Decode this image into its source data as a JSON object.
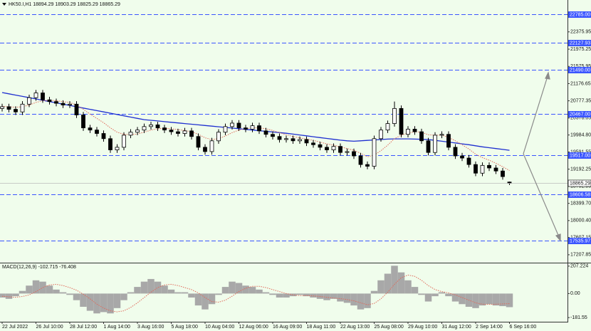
{
  "chart_data": [
    {
      "type": "candlestick",
      "title": "HK50.I,H1  18894.29 18903.29 18825.29 18865.29",
      "categories": [
        "22 Jul 2022",
        null,
        null,
        null,
        null,
        "26 Jul 10:00",
        null,
        null,
        null,
        null,
        "28 Jul 12:00",
        null,
        null,
        null,
        null,
        "1 Aug 14:00",
        null,
        null,
        null,
        null,
        "3 Aug 16:00",
        null,
        null,
        null,
        null,
        "5 Aug 18:00",
        null,
        null,
        null,
        null,
        "10 Aug 04:00",
        null,
        null,
        null,
        null,
        "12 Aug 06:00",
        null,
        null,
        null,
        null,
        "16 Aug 09:00",
        null,
        null,
        null,
        null,
        "18 Aug 11:00",
        null,
        null,
        null,
        null,
        "22 Aug 13:00",
        null,
        null,
        null,
        null,
        "25 Aug 08:00",
        null,
        null,
        null,
        null,
        "29 Aug 10:00",
        null,
        null,
        null,
        null,
        "31 Aug 12:00",
        null,
        null,
        null,
        null,
        "2 Sep 14:00",
        null,
        null,
        null,
        null,
        "6 Sep 16:00"
      ],
      "open": [
        20600,
        20640,
        20580,
        20520,
        20700,
        20850,
        20960,
        20800,
        20760,
        20720,
        20680,
        20700,
        20450,
        20150,
        20100,
        20020,
        19900,
        19640,
        19700,
        19980,
        20050,
        20100,
        20180,
        20220,
        20150,
        20100,
        20060,
        20020,
        20080,
        19950,
        19700,
        19600,
        19850,
        20050,
        20180,
        20260,
        20150,
        20120,
        20200,
        20080,
        20000,
        19950,
        19880,
        19900,
        19850,
        19880,
        19800,
        19760,
        19700,
        19640,
        19720,
        19580,
        19600,
        19500,
        19300,
        19260,
        19900,
        20100,
        20250,
        20600,
        20000,
        20120,
        20060,
        19850,
        19580,
        19980,
        20000,
        19700,
        19500,
        19450,
        19300,
        19100,
        19280,
        19220,
        19150,
        18894.29
      ],
      "high": [
        20710,
        20710,
        20650,
        20770,
        20920,
        21030,
        21030,
        20870,
        20830,
        20790,
        20770,
        20770,
        20520,
        20220,
        20170,
        20090,
        19970,
        19770,
        20050,
        20120,
        20170,
        20250,
        20290,
        20290,
        20220,
        20170,
        20130,
        20150,
        20150,
        20020,
        19770,
        19920,
        20120,
        20250,
        20330,
        20330,
        20220,
        20270,
        20270,
        20150,
        20070,
        20020,
        19970,
        19970,
        19950,
        19950,
        19870,
        19830,
        19770,
        19790,
        19790,
        19670,
        19670,
        19570,
        19370,
        19970,
        20170,
        20320,
        20760,
        20670,
        20190,
        20190,
        20130,
        19920,
        20050,
        20070,
        20070,
        19770,
        19570,
        19520,
        19370,
        19350,
        19350,
        19290,
        19220,
        18903.29
      ],
      "low": [
        20530,
        20510,
        20450,
        20450,
        20630,
        20780,
        20730,
        20690,
        20650,
        20610,
        20610,
        20380,
        20080,
        20030,
        19950,
        19830,
        19570,
        19570,
        19630,
        19910,
        19980,
        20030,
        20110,
        20080,
        20030,
        19990,
        19950,
        19950,
        19880,
        19630,
        19530,
        19530,
        19780,
        19980,
        20110,
        20080,
        20050,
        20050,
        20010,
        19930,
        19880,
        19810,
        19810,
        19780,
        19780,
        19730,
        19690,
        19630,
        19570,
        19570,
        19510,
        19510,
        19430,
        19230,
        19190,
        19190,
        19830,
        20030,
        20180,
        19930,
        19930,
        19990,
        19780,
        19510,
        19510,
        19910,
        19630,
        19430,
        19380,
        19230,
        19030,
        19030,
        19150,
        19080,
        18950,
        18825.29
      ],
      "close": [
        20640,
        20580,
        20520,
        20700,
        20850,
        20960,
        20800,
        20760,
        20720,
        20680,
        20700,
        20450,
        20150,
        20100,
        20020,
        19900,
        19640,
        19700,
        19980,
        20050,
        20100,
        20180,
        20220,
        20150,
        20100,
        20060,
        20020,
        20080,
        19950,
        19700,
        19600,
        19850,
        20050,
        20180,
        20260,
        20150,
        20120,
        20200,
        20080,
        20000,
        19950,
        19880,
        19900,
        19850,
        19880,
        19800,
        19760,
        19700,
        19640,
        19720,
        19580,
        19600,
        19500,
        19300,
        19260,
        19900,
        20100,
        20250,
        20600,
        20000,
        20120,
        20060,
        19850,
        19580,
        19980,
        20000,
        19700,
        19500,
        19450,
        19300,
        19100,
        19280,
        19220,
        19150,
        19020,
        18865.29
      ],
      "up_color": "#ffffff",
      "down_color": "#000000",
      "lines": [
        {
          "color": "#1f2fd0",
          "style": "solid",
          "values": [
            20970,
            20940,
            20910,
            20880,
            20850,
            20820,
            20790,
            20760,
            20730,
            20700,
            20670,
            20640,
            20610,
            20580,
            20550,
            20520,
            20490,
            20460,
            20430,
            20400,
            20370,
            20340,
            20325,
            20310,
            20295,
            20280,
            20265,
            20250,
            20235,
            20220,
            20205,
            20190,
            20175,
            20160,
            20145,
            20130,
            20115,
            20100,
            20085,
            20070,
            20055,
            20040,
            20025,
            20005,
            19985,
            19965,
            19945,
            19925,
            19905,
            19885,
            19865,
            19850,
            19840,
            19850,
            19860,
            19870,
            19880,
            19890,
            19895,
            19895,
            19895,
            19890,
            19885,
            19880,
            19860,
            19840,
            19820,
            19800,
            19780,
            19760,
            19735,
            19710,
            19690,
            19670,
            19650,
            19630
          ]
        },
        {
          "color": "#e06a5a",
          "style": "dotted",
          "values": [
            20650,
            20640,
            20630,
            20640,
            20680,
            20740,
            20780,
            20790,
            20780,
            20760,
            20740,
            20680,
            20580,
            20470,
            20370,
            20270,
            20150,
            20050,
            20000,
            19990,
            20010,
            20050,
            20100,
            20130,
            20140,
            20130,
            20110,
            20090,
            20060,
            20000,
            19920,
            19880,
            19900,
            19960,
            20040,
            20100,
            20130,
            20150,
            20150,
            20130,
            20090,
            20040,
            19990,
            19950,
            19920,
            19890,
            19860,
            19820,
            19780,
            19750,
            19710,
            19670,
            19630,
            19560,
            19480,
            19520,
            19620,
            19750,
            19900,
            19980,
            20030,
            20060,
            20050,
            19990,
            19980,
            19980,
            19930,
            19850,
            19760,
            19660,
            19540,
            19460,
            19400,
            19330,
            19250,
            19160
          ]
        }
      ],
      "levels": [
        {
          "value": 22785,
          "label": "22785.00"
        },
        22127.93,
        {
          "value": 21490,
          "label": "21490.00"
        },
        {
          "value": 20467,
          "label": "20467.00"
        },
        {
          "value": 19517,
          "label": "19517.00"
        },
        18606.58,
        17535.97
      ],
      "level_color": "#3a55ff",
      "last_price": 18865.29,
      "ylim": [
        17041,
        23115
      ],
      "yticks": [
        22375.95,
        21975.25,
        21575.95,
        21176.65,
        20777.35,
        20378.05,
        {
          "value": 19984.8,
          "label": "19984.80"
        },
        19591.55,
        19192.25,
        18792.95,
        {
          "value": 18399.7,
          "label": "18399.70"
        },
        {
          "value": 18000.4,
          "label": "18000.40"
        },
        17607.15,
        17207.85
      ]
    },
    {
      "type": "macd",
      "title": "MACD(12,26,9) -102.715 -76.408",
      "histogram": [
        -30,
        -40,
        -20,
        20,
        60,
        100,
        90,
        60,
        30,
        10,
        -10,
        -50,
        -100,
        -130,
        -150,
        -140,
        -150,
        -110,
        -50,
        10,
        50,
        90,
        110,
        90,
        60,
        30,
        10,
        10,
        -30,
        -90,
        -120,
        -80,
        -10,
        50,
        90,
        80,
        60,
        50,
        30,
        10,
        -10,
        -30,
        -30,
        -20,
        -10,
        -20,
        -30,
        -40,
        -50,
        -40,
        -60,
        -70,
        -90,
        -120,
        -110,
        20,
        100,
        150,
        210,
        160,
        100,
        50,
        -10,
        -60,
        -20,
        10,
        -20,
        -60,
        -80,
        -100,
        -110,
        -90,
        -80,
        -90,
        -95,
        -102.715
      ],
      "signal": [
        -20,
        -25,
        -28,
        -22,
        -10,
        15,
        45,
        65,
        70,
        60,
        45,
        25,
        -5,
        -40,
        -80,
        -110,
        -130,
        -138,
        -130,
        -105,
        -70,
        -30,
        10,
        45,
        65,
        70,
        60,
        45,
        30,
        5,
        -30,
        -60,
        -65,
        -50,
        -20,
        15,
        40,
        55,
        55,
        45,
        30,
        15,
        0,
        -10,
        -15,
        -15,
        -18,
        -22,
        -28,
        -34,
        -38,
        -45,
        -55,
        -70,
        -85,
        -75,
        -40,
        10,
        70,
        120,
        140,
        130,
        100,
        60,
        30,
        15,
        5,
        -10,
        -30,
        -50,
        -70,
        -80,
        -82,
        -80,
        -78,
        -76.408
      ],
      "hist_color": "#a8a8a8",
      "signal_color": "#e06a5a",
      "ylim": [
        -213,
        228
      ],
      "yticks": [
        207.224,
        {
          "value": 0,
          "label": "0.00"
        },
        -181.55
      ]
    }
  ]
}
